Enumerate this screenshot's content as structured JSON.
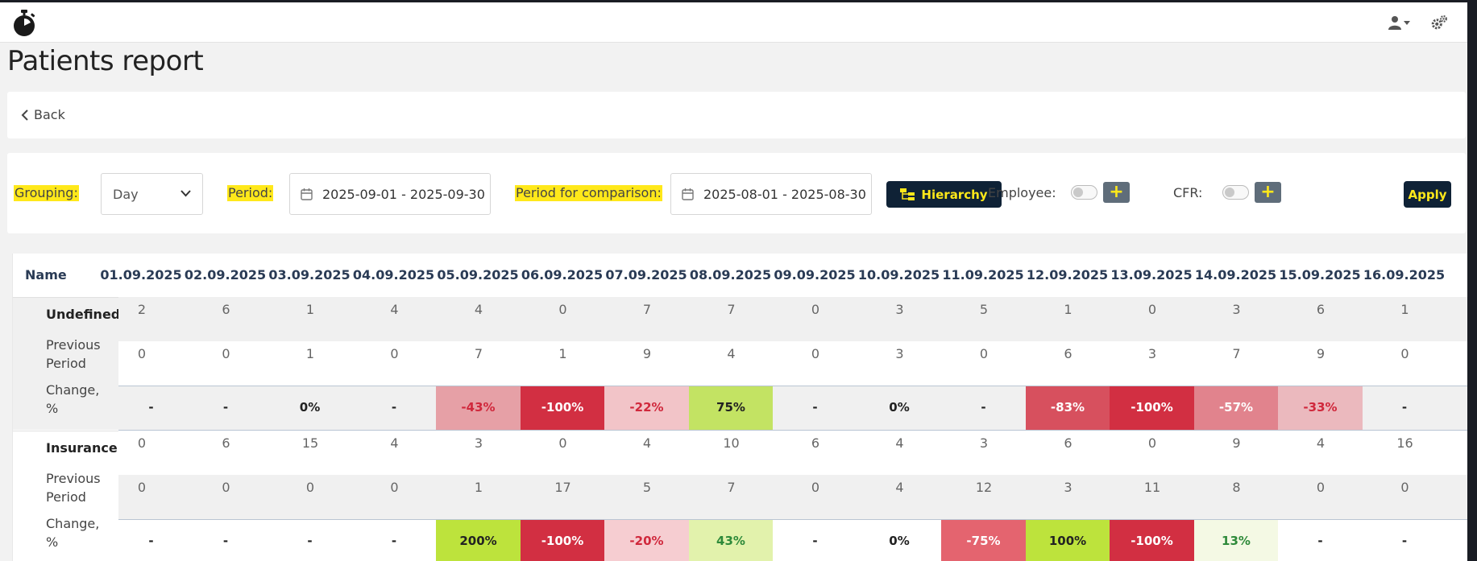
{
  "header": {
    "logo_icon": "stopwatch-icon",
    "user_icon": "user-icon",
    "settings_icon": "gears-icon"
  },
  "page": {
    "title": "Patients report"
  },
  "nav": {
    "back_label": "Back"
  },
  "filters": {
    "grouping_label": "Grouping:",
    "grouping_value": "Day",
    "period_label": "Period:",
    "period_value": "2025-09-01 - 2025-09-30",
    "comparison_label": "Period for comparison:",
    "comparison_value": "2025-08-01 - 2025-08-30",
    "hierarchy_label": "Hierarchy",
    "employee_label": "Employee:",
    "employee_toggle": false,
    "employee_add": "+",
    "cfr_label": "CFR:",
    "cfr_toggle": false,
    "cfr_add": "+",
    "apply_label": "Apply"
  },
  "table": {
    "name_header": "Name",
    "dates": [
      "01.09.2025",
      "02.09.2025",
      "03.09.2025",
      "04.09.2025",
      "05.09.2025",
      "06.09.2025",
      "07.09.2025",
      "08.09.2025",
      "09.09.2025",
      "10.09.2025",
      "11.09.2025",
      "12.09.2025",
      "13.09.2025",
      "14.09.2025",
      "15.09.2025",
      "16.09.2025"
    ],
    "groups": [
      {
        "name": "Undefined",
        "previous_label": "Previous Period",
        "change_label": "Change, %",
        "current": [
          "2",
          "6",
          "1",
          "4",
          "4",
          "0",
          "7",
          "7",
          "0",
          "3",
          "5",
          "1",
          "0",
          "3",
          "6",
          "1"
        ],
        "previous": [
          "0",
          "0",
          "1",
          "0",
          "7",
          "1",
          "9",
          "4",
          "0",
          "3",
          "0",
          "6",
          "3",
          "7",
          "9",
          "0"
        ],
        "change": [
          {
            "v": "-",
            "c": "#f0f0f0",
            "t": "#222"
          },
          {
            "v": "-",
            "c": "#f0f0f0",
            "t": "#222"
          },
          {
            "v": "0%",
            "c": "#f0f0f0",
            "t": "#222"
          },
          {
            "v": "-",
            "c": "#f0f0f0",
            "t": "#222"
          },
          {
            "v": "-43%",
            "c": "#e6a0a6",
            "t": "#d0283c"
          },
          {
            "v": "-100%",
            "c": "#d22f42",
            "t": "#ffffff"
          },
          {
            "v": "-22%",
            "c": "#f2c4c8",
            "t": "#d0283c"
          },
          {
            "v": "75%",
            "c": "#c3e363",
            "t": "#222"
          },
          {
            "v": "-",
            "c": "#f0f0f0",
            "t": "#222"
          },
          {
            "v": "0%",
            "c": "#f0f0f0",
            "t": "#222"
          },
          {
            "v": "-",
            "c": "#f0f0f0",
            "t": "#222"
          },
          {
            "v": "-83%",
            "c": "#d7505e",
            "t": "#ffffff"
          },
          {
            "v": "-100%",
            "c": "#d22f42",
            "t": "#ffffff"
          },
          {
            "v": "-57%",
            "c": "#e1838d",
            "t": "#ffffff"
          },
          {
            "v": "-33%",
            "c": "#ebb9be",
            "t": "#d0283c"
          },
          {
            "v": "-",
            "c": "#f0f0f0",
            "t": "#222"
          }
        ]
      },
      {
        "name": "Insurance",
        "previous_label": "Previous Period",
        "change_label": "Change, %",
        "current": [
          "0",
          "6",
          "15",
          "4",
          "3",
          "0",
          "4",
          "10",
          "6",
          "4",
          "3",
          "6",
          "0",
          "9",
          "4",
          "16"
        ],
        "previous": [
          "0",
          "0",
          "0",
          "0",
          "1",
          "17",
          "5",
          "7",
          "0",
          "4",
          "12",
          "3",
          "11",
          "8",
          "0",
          "0"
        ],
        "change": [
          {
            "v": "-",
            "c": "#ffffff",
            "t": "#222"
          },
          {
            "v": "-",
            "c": "#ffffff",
            "t": "#222"
          },
          {
            "v": "-",
            "c": "#ffffff",
            "t": "#222"
          },
          {
            "v": "-",
            "c": "#ffffff",
            "t": "#222"
          },
          {
            "v": "200%",
            "c": "#bde33c",
            "t": "#222"
          },
          {
            "v": "-100%",
            "c": "#d22f42",
            "t": "#ffffff"
          },
          {
            "v": "-20%",
            "c": "#f6cdd1",
            "t": "#d0283c"
          },
          {
            "v": "43%",
            "c": "#e2f2ac",
            "t": "#2e8a3a"
          },
          {
            "v": "-",
            "c": "#ffffff",
            "t": "#222"
          },
          {
            "v": "0%",
            "c": "#ffffff",
            "t": "#222"
          },
          {
            "v": "-75%",
            "c": "#e4646f",
            "t": "#ffffff"
          },
          {
            "v": "100%",
            "c": "#bde33c",
            "t": "#222"
          },
          {
            "v": "-100%",
            "c": "#d22f42",
            "t": "#ffffff"
          },
          {
            "v": "13%",
            "c": "#f4f9e4",
            "t": "#2e8a3a"
          },
          {
            "v": "-",
            "c": "#ffffff",
            "t": "#222"
          },
          {
            "v": "-",
            "c": "#ffffff",
            "t": "#222"
          }
        ]
      }
    ]
  }
}
